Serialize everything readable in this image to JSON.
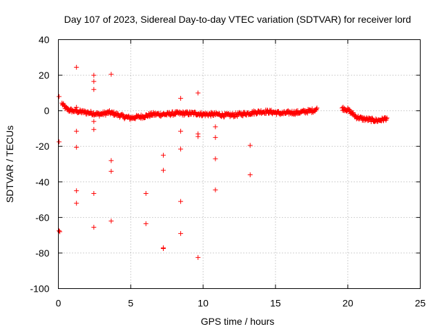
{
  "chart_data": {
    "type": "scatter",
    "title": "Day 107 of 2023, Sidereal Day-to-day VTEC variation (SDTVAR) for receiver lord",
    "xlabel": "GPS time / hours",
    "ylabel": "SDTVAR / TECUs",
    "xlim": [
      0,
      25
    ],
    "ylim": [
      -100,
      40
    ],
    "xticks": [
      0,
      5,
      10,
      15,
      20,
      25
    ],
    "yticks": [
      -100,
      -80,
      -60,
      -40,
      -20,
      0,
      20,
      40
    ],
    "grid": true,
    "marker": "+",
    "color": "#ff0000",
    "series": [
      {
        "name": "SDTVAR",
        "outliers": [
          [
            0.05,
            8
          ],
          [
            0.05,
            -17.5
          ],
          [
            0.05,
            -67.5
          ],
          [
            0.1,
            -68
          ],
          [
            1.25,
            24.5
          ],
          [
            1.25,
            2
          ],
          [
            1.25,
            -11.5
          ],
          [
            1.25,
            -20.5
          ],
          [
            1.25,
            -45
          ],
          [
            1.25,
            -52
          ],
          [
            2.45,
            20
          ],
          [
            2.45,
            16.5
          ],
          [
            2.45,
            12
          ],
          [
            2.45,
            -6
          ],
          [
            2.45,
            -10.5
          ],
          [
            2.45,
            -46.5
          ],
          [
            2.45,
            -65.5
          ],
          [
            3.65,
            20.5
          ],
          [
            3.65,
            -28
          ],
          [
            3.65,
            -34
          ],
          [
            3.65,
            -62
          ],
          [
            6.05,
            -46.5
          ],
          [
            6.05,
            -63.5
          ],
          [
            7.25,
            -25
          ],
          [
            7.25,
            -33.5
          ],
          [
            7.25,
            -77
          ],
          [
            7.25,
            -77.5
          ],
          [
            8.45,
            7
          ],
          [
            8.45,
            -11.5
          ],
          [
            8.45,
            -21.5
          ],
          [
            8.45,
            -51
          ],
          [
            8.45,
            -69
          ],
          [
            9.65,
            10
          ],
          [
            9.65,
            -13
          ],
          [
            9.65,
            -14.5
          ],
          [
            9.65,
            -82.5
          ],
          [
            10.85,
            -9
          ],
          [
            10.85,
            -15
          ],
          [
            10.85,
            -27
          ],
          [
            10.85,
            -44.5
          ],
          [
            13.25,
            -19.5
          ],
          [
            13.25,
            -36
          ]
        ],
        "trend": [
          [
            0.25,
            4
          ],
          [
            0.35,
            3
          ],
          [
            0.5,
            1.5
          ],
          [
            0.7,
            0.5
          ],
          [
            1.0,
            0
          ],
          [
            1.5,
            -0.5
          ],
          [
            2.0,
            -1
          ],
          [
            2.5,
            -1.5
          ],
          [
            2.8,
            -2
          ],
          [
            3.2,
            -1.5
          ],
          [
            3.5,
            -1
          ],
          [
            3.8,
            -1.5
          ],
          [
            4.2,
            -2.5
          ],
          [
            4.6,
            -3.5
          ],
          [
            5.0,
            -4
          ],
          [
            5.5,
            -3.5
          ],
          [
            6.0,
            -3
          ],
          [
            6.5,
            -2
          ],
          [
            7.0,
            -2
          ],
          [
            7.5,
            -2
          ],
          [
            8.0,
            -1.5
          ],
          [
            8.5,
            -1.5
          ],
          [
            9.0,
            -1.5
          ],
          [
            9.5,
            -1.5
          ],
          [
            10.0,
            -2
          ],
          [
            10.5,
            -2
          ],
          [
            11.0,
            -2
          ],
          [
            11.5,
            -2.5
          ],
          [
            12.0,
            -2.5
          ],
          [
            12.5,
            -2
          ],
          [
            13.0,
            -1.5
          ],
          [
            13.5,
            -1
          ],
          [
            14.0,
            -0.5
          ],
          [
            14.5,
            -0.5
          ],
          [
            15.0,
            -1
          ],
          [
            15.5,
            -1.5
          ],
          [
            16.0,
            -1
          ],
          [
            16.5,
            -1
          ],
          [
            17.0,
            -0.5
          ],
          [
            17.5,
            0
          ],
          [
            17.9,
            1
          ],
          [
            19.6,
            1.5
          ],
          [
            20.0,
            0.5
          ],
          [
            20.3,
            -1.5
          ],
          [
            20.6,
            -3.5
          ],
          [
            21.0,
            -4.5
          ],
          [
            21.5,
            -5
          ],
          [
            22.0,
            -5.5
          ],
          [
            22.4,
            -5
          ],
          [
            22.7,
            -4
          ]
        ]
      }
    ]
  }
}
